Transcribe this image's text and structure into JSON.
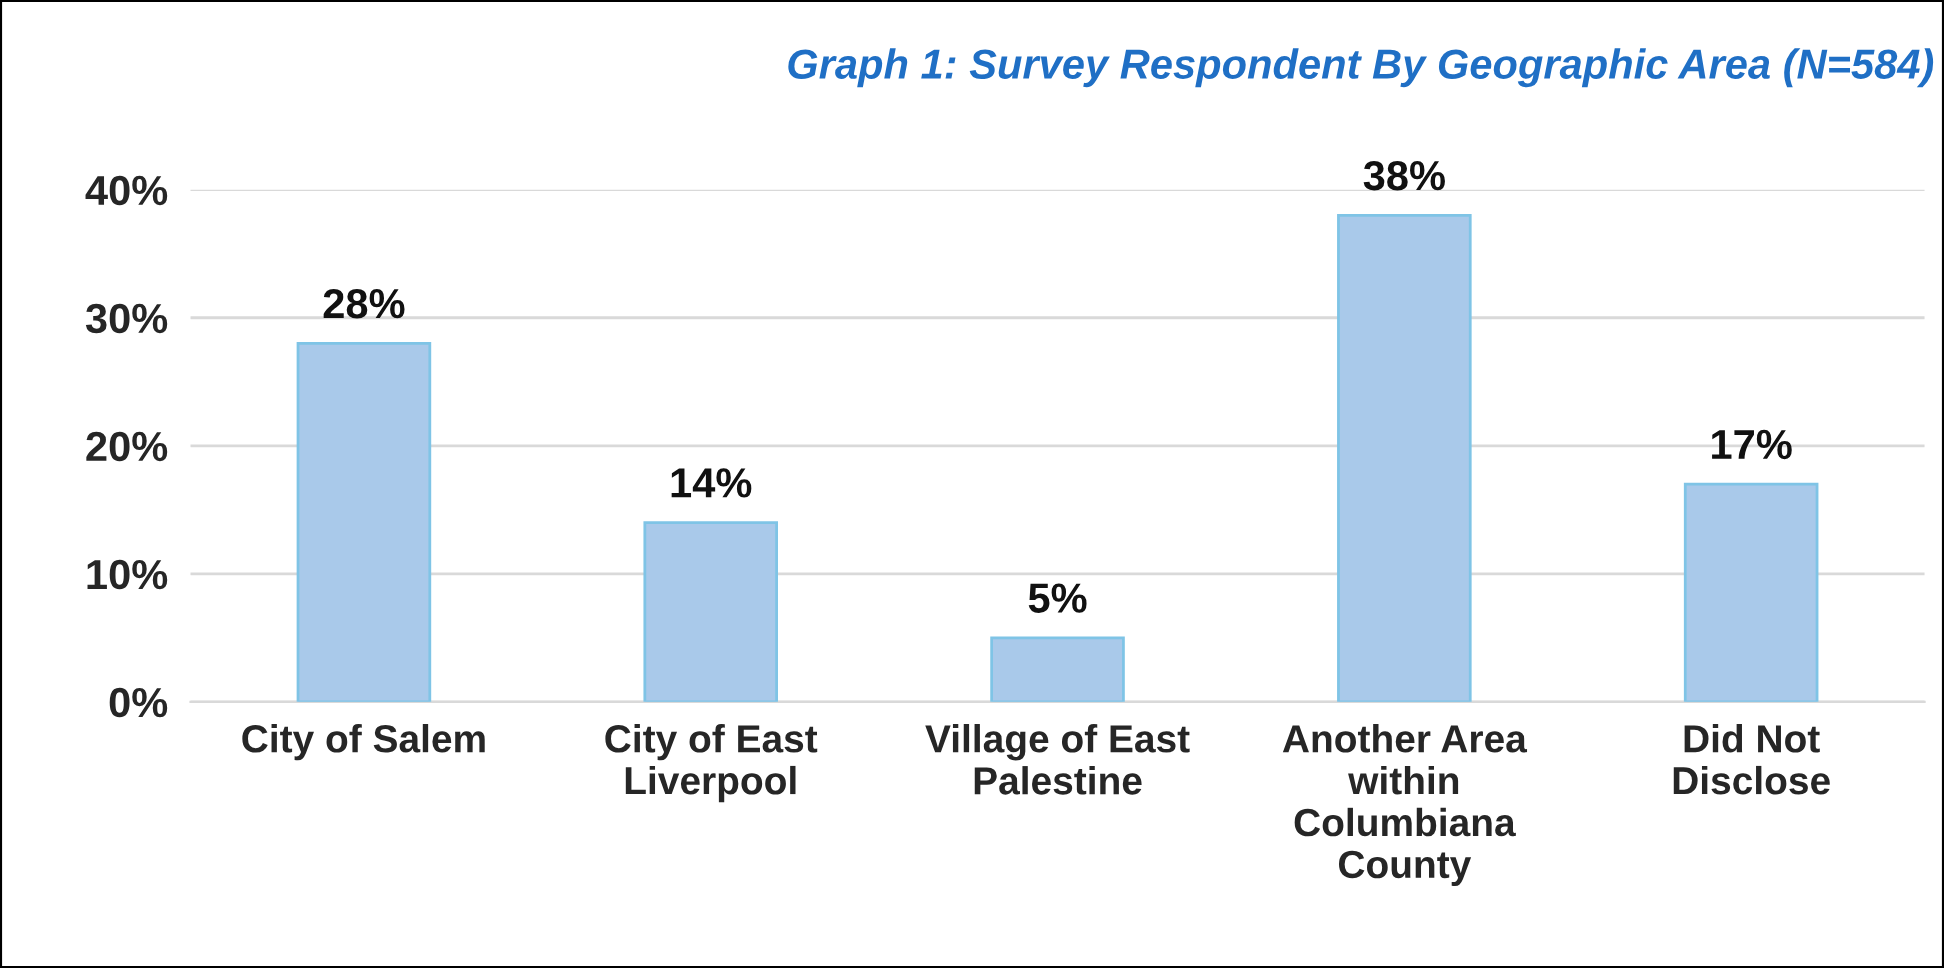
{
  "chart_data": {
    "type": "bar",
    "title": "Graph 1: Survey Respondent By Geographic Area (N=584)",
    "categories": [
      "City of Salem",
      "City of East\nLiverpool",
      "Village of East\nPalestine",
      "Another Area\nwithin\nColumbiana\nCounty",
      "Did Not\nDisclose"
    ],
    "values": [
      28,
      14,
      5,
      38,
      17
    ],
    "value_labels": [
      "28%",
      "14%",
      "5%",
      "38%",
      "17%"
    ],
    "color": "#a9c9ea",
    "ylim": [
      0,
      40
    ],
    "yticks": [
      {
        "value": 0,
        "label": "0%"
      },
      {
        "value": 10,
        "label": "10%"
      },
      {
        "value": 20,
        "label": "20%"
      },
      {
        "value": 30,
        "label": "30%"
      },
      {
        "value": 40,
        "label": "40%"
      }
    ],
    "grid": "y",
    "legend": false
  }
}
